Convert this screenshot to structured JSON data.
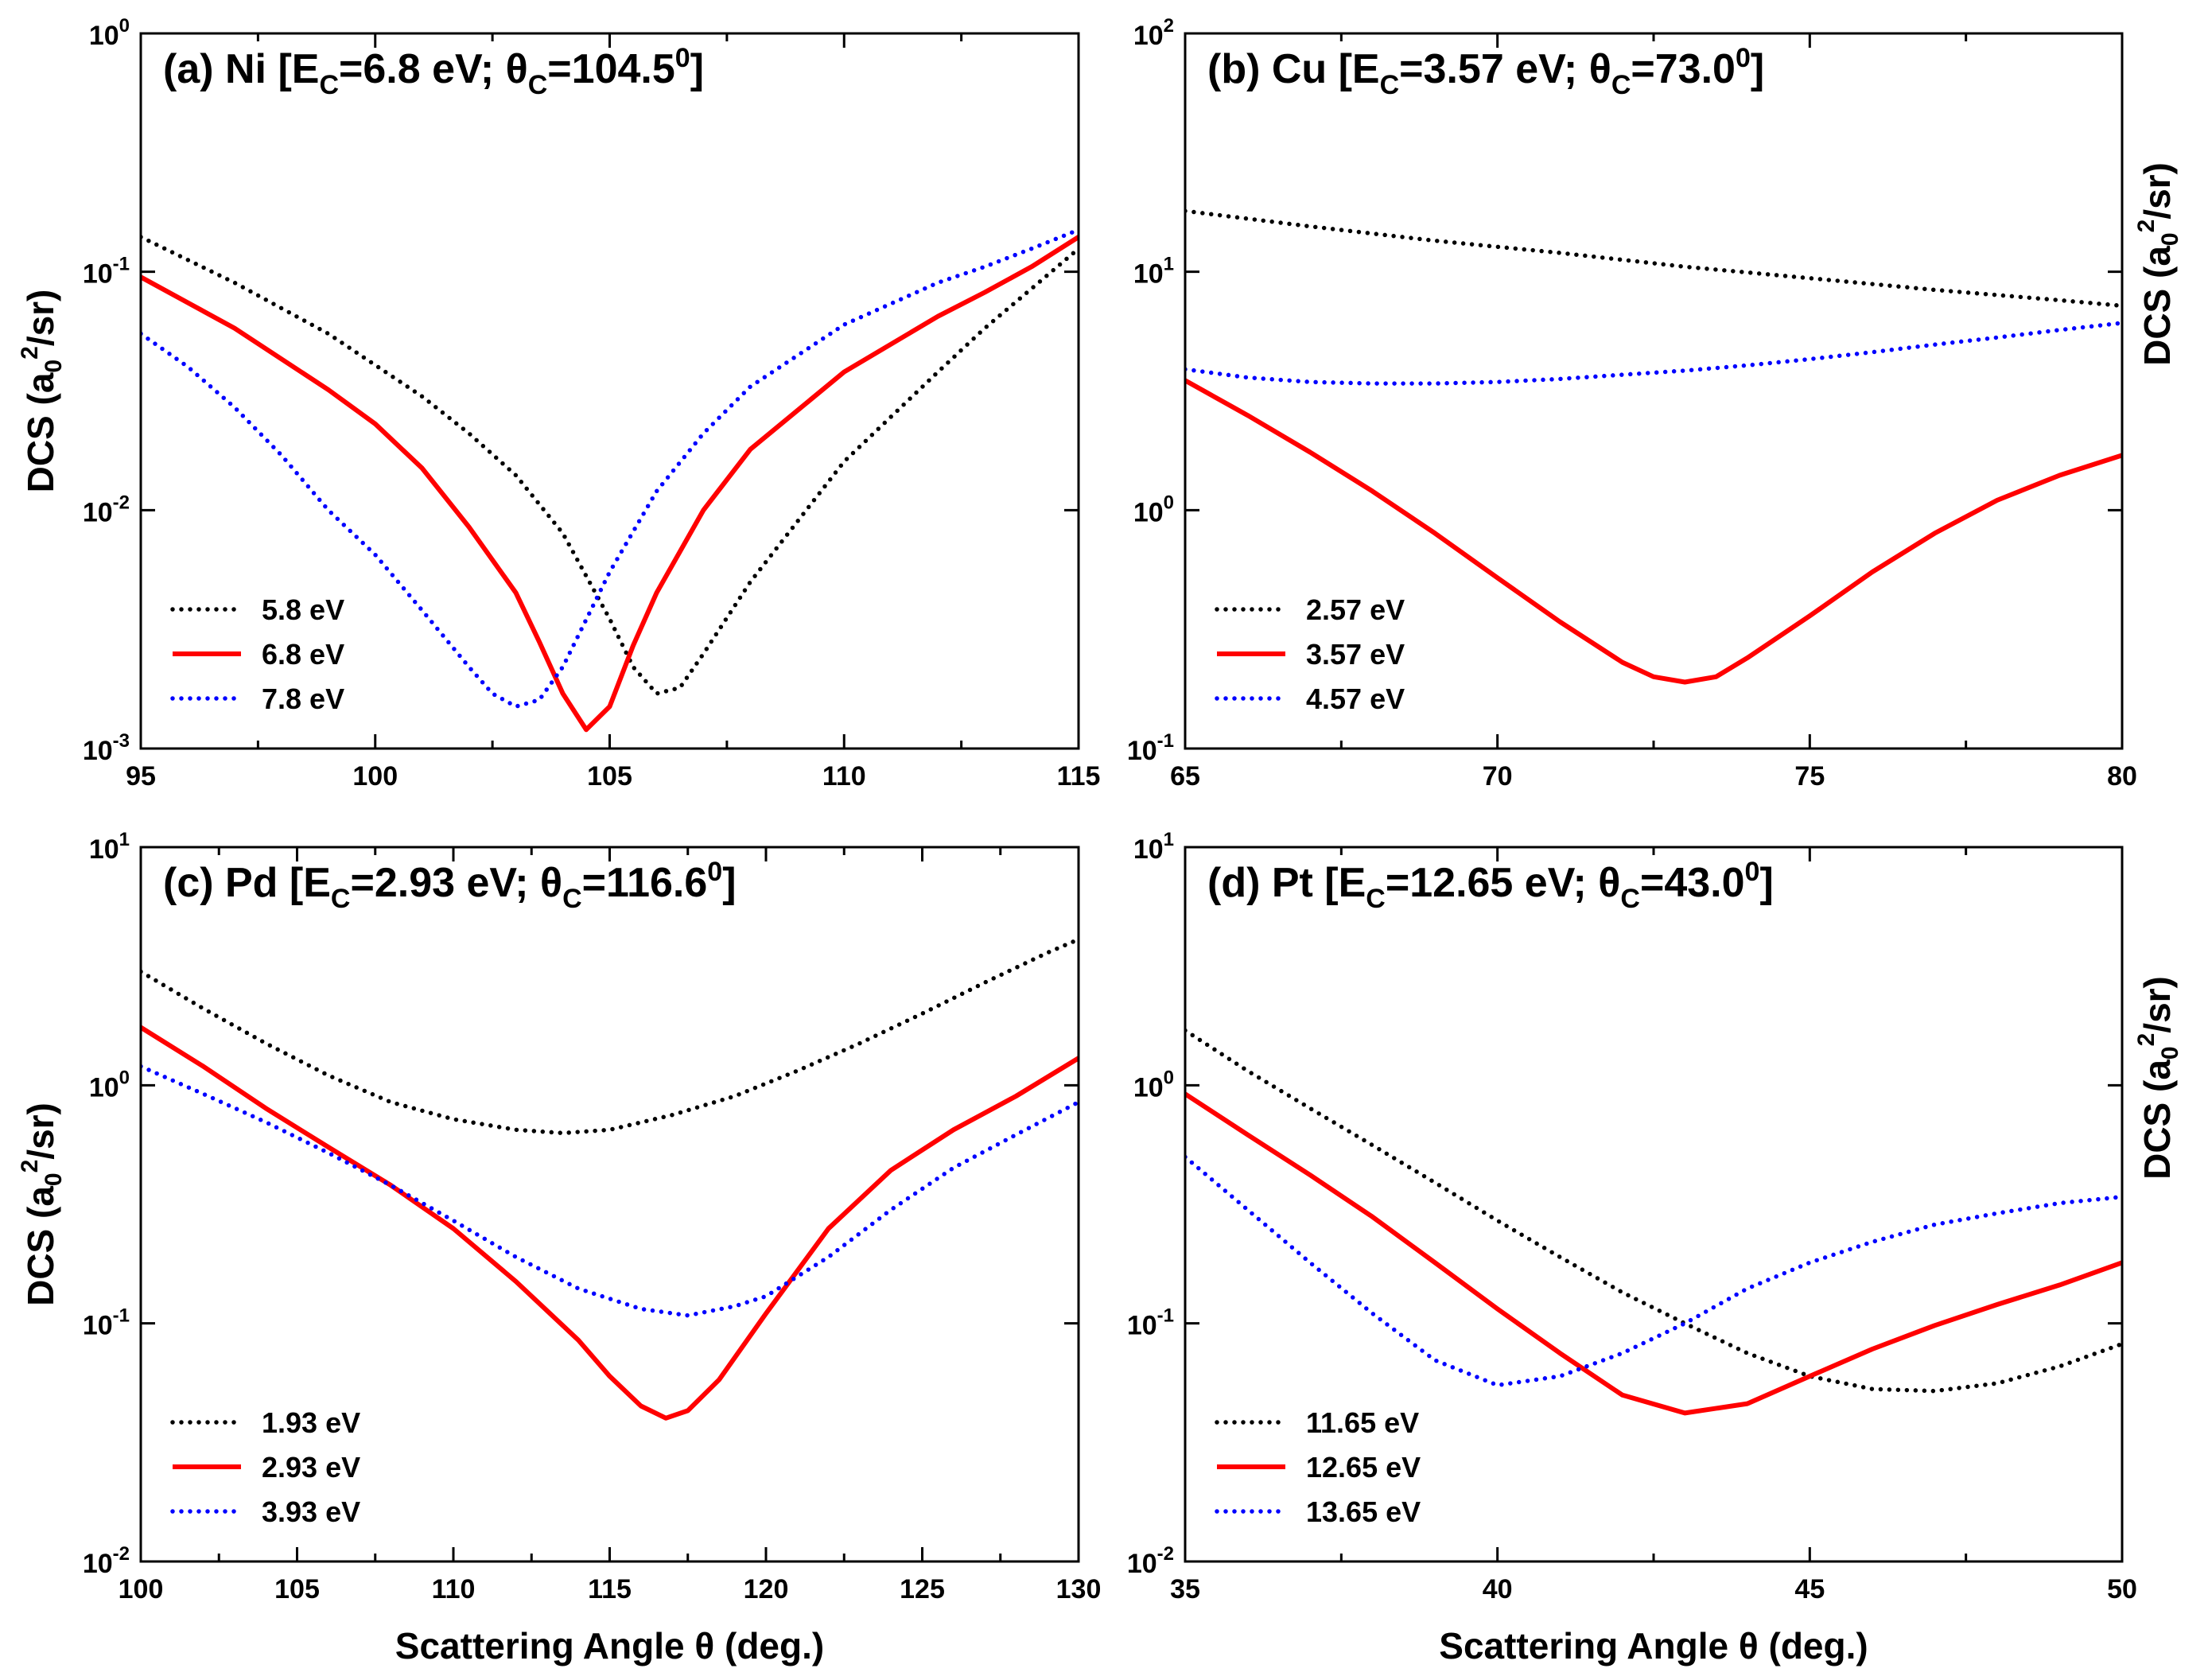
{
  "figure": {
    "x_axis_label": "Scattering Angle θ (deg.)",
    "y_axis_label": "DCS (a₀²/sr)"
  },
  "chart_data": [
    {
      "type": "line",
      "panel": "a",
      "title": "(a) Ni [E",
      "title_parts": [
        "(a) Ni [E",
        "C",
        "=6.8 eV; θ",
        "C",
        "=104.5",
        "0",
        "]"
      ],
      "xlabel": "",
      "ylabel": "DCS (a₀²/sr)",
      "ylabel_side": "left",
      "xlim": [
        95,
        115
      ],
      "ylim": [
        0.001,
        1
      ],
      "y_scale": "log",
      "xticks": [
        95,
        100,
        105,
        110,
        115
      ],
      "yticks": [
        {
          "base": "10",
          "exp": "-3"
        },
        {
          "base": "10",
          "exp": "-2"
        },
        {
          "base": "10",
          "exp": "-1"
        },
        {
          "base": "10",
          "exp": "0"
        }
      ],
      "legend_position": "bottom-left",
      "series": [
        {
          "name": "5.8 eV",
          "color": "#000000",
          "style": "dotted",
          "points": [
            [
              95,
              0.14
            ],
            [
              97,
              0.09
            ],
            [
              99,
              0.055
            ],
            [
              101,
              0.03
            ],
            [
              102,
              0.021
            ],
            [
              103,
              0.014
            ],
            [
              104,
              0.008
            ],
            [
              105,
              0.0035
            ],
            [
              105.5,
              0.0022
            ],
            [
              106,
              0.0017
            ],
            [
              106.5,
              0.0018
            ],
            [
              107,
              0.0025
            ],
            [
              108,
              0.005
            ],
            [
              110,
              0.016
            ],
            [
              112,
              0.038
            ],
            [
              113,
              0.058
            ],
            [
              114,
              0.085
            ],
            [
              115,
              0.125
            ]
          ]
        },
        {
          "name": "6.8 eV",
          "color": "#ff0000",
          "style": "solid",
          "points": [
            [
              95,
              0.095
            ],
            [
              97,
              0.058
            ],
            [
              99,
              0.032
            ],
            [
              100,
              0.023
            ],
            [
              101,
              0.015
            ],
            [
              102,
              0.0085
            ],
            [
              103,
              0.0045
            ],
            [
              103.5,
              0.0028
            ],
            [
              104,
              0.0017
            ],
            [
              104.5,
              0.0012
            ],
            [
              105,
              0.0015
            ],
            [
              105.5,
              0.0027
            ],
            [
              106,
              0.0045
            ],
            [
              107,
              0.01
            ],
            [
              108,
              0.018
            ],
            [
              110,
              0.038
            ],
            [
              112,
              0.065
            ],
            [
              113,
              0.082
            ],
            [
              114,
              0.105
            ],
            [
              115,
              0.14
            ]
          ]
        },
        {
          "name": "7.8 eV",
          "color": "#0000ff",
          "style": "dotted",
          "points": [
            [
              95,
              0.055
            ],
            [
              96,
              0.04
            ],
            [
              97,
              0.027
            ],
            [
              98,
              0.017
            ],
            [
              99,
              0.01
            ],
            [
              100,
              0.0065
            ],
            [
              101,
              0.0038
            ],
            [
              102,
              0.0022
            ],
            [
              102.5,
              0.0017
            ],
            [
              103,
              0.0015
            ],
            [
              103.5,
              0.0016
            ],
            [
              104,
              0.0022
            ],
            [
              105,
              0.0055
            ],
            [
              106,
              0.012
            ],
            [
              107,
              0.021
            ],
            [
              108,
              0.033
            ],
            [
              110,
              0.06
            ],
            [
              112,
              0.09
            ],
            [
              113,
              0.105
            ],
            [
              114,
              0.125
            ],
            [
              115,
              0.15
            ]
          ]
        }
      ]
    },
    {
      "type": "line",
      "panel": "b",
      "title": "(b) Cu [E",
      "title_parts": [
        "(b) Cu [E",
        "C",
        "=3.57 eV; θ",
        "C",
        "=73.0",
        "0",
        "]"
      ],
      "xlabel": "",
      "ylabel": "DCS (a₀²/sr)",
      "ylabel_side": "right",
      "xlim": [
        65,
        80
      ],
      "ylim": [
        0.1,
        100
      ],
      "y_scale": "log",
      "xticks": [
        65,
        70,
        75,
        80
      ],
      "yticks": [
        {
          "base": "10",
          "exp": "-1"
        },
        {
          "base": "10",
          "exp": "0"
        },
        {
          "base": "10",
          "exp": "1"
        },
        {
          "base": "10",
          "exp": "2"
        }
      ],
      "legend_position": "bottom-left",
      "series": [
        {
          "name": "2.57 eV",
          "color": "#000000",
          "style": "dotted",
          "points": [
            [
              65,
              18
            ],
            [
              67,
              15.5
            ],
            [
              69,
              13.5
            ],
            [
              71,
              12
            ],
            [
              73,
              10.5
            ],
            [
              75,
              9.4
            ],
            [
              77,
              8.4
            ],
            [
              79,
              7.6
            ],
            [
              80,
              7.2
            ]
          ]
        },
        {
          "name": "3.57 eV",
          "color": "#ff0000",
          "style": "solid",
          "points": [
            [
              65,
              3.5
            ],
            [
              66,
              2.5
            ],
            [
              67,
              1.75
            ],
            [
              68,
              1.2
            ],
            [
              69,
              0.8
            ],
            [
              70,
              0.52
            ],
            [
              71,
              0.34
            ],
            [
              72,
              0.23
            ],
            [
              72.5,
              0.2
            ],
            [
              73,
              0.19
            ],
            [
              73.5,
              0.2
            ],
            [
              74,
              0.24
            ],
            [
              75,
              0.36
            ],
            [
              76,
              0.55
            ],
            [
              77,
              0.8
            ],
            [
              78,
              1.1
            ],
            [
              79,
              1.4
            ],
            [
              80,
              1.7
            ]
          ]
        },
        {
          "name": "4.57 eV",
          "color": "#0000ff",
          "style": "dotted",
          "points": [
            [
              65,
              3.9
            ],
            [
              66,
              3.6
            ],
            [
              67,
              3.45
            ],
            [
              68,
              3.4
            ],
            [
              69,
              3.4
            ],
            [
              70,
              3.45
            ],
            [
              71,
              3.55
            ],
            [
              72,
              3.7
            ],
            [
              73,
              3.85
            ],
            [
              74,
              4.05
            ],
            [
              75,
              4.3
            ],
            [
              76,
              4.6
            ],
            [
              77,
              4.95
            ],
            [
              78,
              5.3
            ],
            [
              79,
              5.7
            ],
            [
              80,
              6.1
            ]
          ]
        }
      ]
    },
    {
      "type": "line",
      "panel": "c",
      "title": "(c) Pd [E",
      "title_parts": [
        "(c) Pd [E",
        "C",
        "=2.93 eV; θ",
        "C",
        "=116.6",
        "0",
        "]"
      ],
      "xlabel": "Scattering Angle θ (deg.)",
      "ylabel": "DCS (a₀²/sr)",
      "ylabel_side": "left",
      "xlim": [
        100,
        130
      ],
      "ylim": [
        0.01,
        10
      ],
      "y_scale": "log",
      "xticks": [
        100,
        105,
        110,
        115,
        120,
        125,
        130
      ],
      "yticks": [
        {
          "base": "10",
          "exp": "-2"
        },
        {
          "base": "10",
          "exp": "-1"
        },
        {
          "base": "10",
          "exp": "0"
        },
        {
          "base": "10",
          "exp": "1"
        }
      ],
      "legend_position": "bottom-left",
      "series": [
        {
          "name": "1.93 eV",
          "color": "#000000",
          "style": "dotted",
          "points": [
            [
              100,
              3
            ],
            [
              102,
              2.1
            ],
            [
              104,
              1.5
            ],
            [
              106,
              1.1
            ],
            [
              108,
              0.85
            ],
            [
              110,
              0.72
            ],
            [
              112,
              0.65
            ],
            [
              113.5,
              0.63
            ],
            [
              115,
              0.65
            ],
            [
              117,
              0.75
            ],
            [
              119,
              0.9
            ],
            [
              121,
              1.15
            ],
            [
              123,
              1.5
            ],
            [
              125,
              2
            ],
            [
              127,
              2.7
            ],
            [
              129,
              3.6
            ],
            [
              130,
              4.1
            ]
          ]
        },
        {
          "name": "2.93 eV",
          "color": "#ff0000",
          "style": "solid",
          "points": [
            [
              100,
              1.75
            ],
            [
              102,
              1.2
            ],
            [
              104,
              0.8
            ],
            [
              106,
              0.55
            ],
            [
              108,
              0.38
            ],
            [
              110,
              0.25
            ],
            [
              112,
              0.15
            ],
            [
              114,
              0.085
            ],
            [
              115,
              0.06
            ],
            [
              116,
              0.045
            ],
            [
              116.8,
              0.04
            ],
            [
              117.5,
              0.043
            ],
            [
              118.5,
              0.058
            ],
            [
              120,
              0.11
            ],
            [
              122,
              0.25
            ],
            [
              124,
              0.44
            ],
            [
              126,
              0.65
            ],
            [
              128,
              0.9
            ],
            [
              130,
              1.3
            ]
          ]
        },
        {
          "name": "3.93 eV",
          "color": "#0000ff",
          "style": "dotted",
          "points": [
            [
              100,
              1.2
            ],
            [
              102,
              0.92
            ],
            [
              104,
              0.7
            ],
            [
              106,
              0.52
            ],
            [
              108,
              0.38
            ],
            [
              110,
              0.27
            ],
            [
              112,
              0.19
            ],
            [
              114,
              0.14
            ],
            [
              116,
              0.115
            ],
            [
              117.5,
              0.108
            ],
            [
              119,
              0.118
            ],
            [
              120,
              0.13
            ],
            [
              122,
              0.19
            ],
            [
              124,
              0.3
            ],
            [
              126,
              0.45
            ],
            [
              128,
              0.62
            ],
            [
              130,
              0.85
            ]
          ]
        }
      ]
    },
    {
      "type": "line",
      "panel": "d",
      "title": "(d) Pt [E",
      "title_parts": [
        "(d) Pt [E",
        "C",
        "=12.65 eV; θ",
        "C",
        "=43.0",
        "0",
        "]"
      ],
      "xlabel": "Scattering Angle θ (deg.)",
      "ylabel": "DCS (a₀²/sr)",
      "ylabel_side": "right",
      "xlim": [
        35,
        50
      ],
      "ylim": [
        0.01,
        10
      ],
      "y_scale": "log",
      "xticks": [
        35,
        40,
        45,
        50
      ],
      "yticks": [
        {
          "base": "10",
          "exp": "-2"
        },
        {
          "base": "10",
          "exp": "-1"
        },
        {
          "base": "10",
          "exp": "0"
        },
        {
          "base": "10",
          "exp": "1"
        }
      ],
      "legend_position": "bottom-left",
      "series": [
        {
          "name": "11.65 eV",
          "color": "#000000",
          "style": "dotted",
          "points": [
            [
              35,
              1.7
            ],
            [
              36,
              1.15
            ],
            [
              37,
              0.8
            ],
            [
              38,
              0.56
            ],
            [
              39,
              0.39
            ],
            [
              40,
              0.27
            ],
            [
              41,
              0.19
            ],
            [
              42,
              0.135
            ],
            [
              43,
              0.1
            ],
            [
              44,
              0.075
            ],
            [
              45,
              0.06
            ],
            [
              46,
              0.053
            ],
            [
              47,
              0.052
            ],
            [
              48,
              0.056
            ],
            [
              49,
              0.066
            ],
            [
              50,
              0.082
            ]
          ]
        },
        {
          "name": "12.65 eV",
          "color": "#ff0000",
          "style": "solid",
          "points": [
            [
              35,
              0.92
            ],
            [
              36,
              0.62
            ],
            [
              37,
              0.42
            ],
            [
              38,
              0.28
            ],
            [
              39,
              0.18
            ],
            [
              40,
              0.115
            ],
            [
              41,
              0.075
            ],
            [
              42,
              0.05
            ],
            [
              43,
              0.042
            ],
            [
              44,
              0.046
            ],
            [
              45,
              0.06
            ],
            [
              46,
              0.078
            ],
            [
              47,
              0.098
            ],
            [
              48,
              0.12
            ],
            [
              49,
              0.145
            ],
            [
              50,
              0.18
            ]
          ]
        },
        {
          "name": "13.65 eV",
          "color": "#0000ff",
          "style": "dotted",
          "points": [
            [
              35,
              0.5
            ],
            [
              36,
              0.3
            ],
            [
              37,
              0.18
            ],
            [
              38,
              0.11
            ],
            [
              39,
              0.07
            ],
            [
              40,
              0.055
            ],
            [
              41,
              0.06
            ],
            [
              42,
              0.075
            ],
            [
              43,
              0.1
            ],
            [
              44,
              0.14
            ],
            [
              45,
              0.18
            ],
            [
              46,
              0.22
            ],
            [
              47,
              0.26
            ],
            [
              48,
              0.29
            ],
            [
              49,
              0.32
            ],
            [
              50,
              0.34
            ]
          ]
        }
      ]
    }
  ]
}
